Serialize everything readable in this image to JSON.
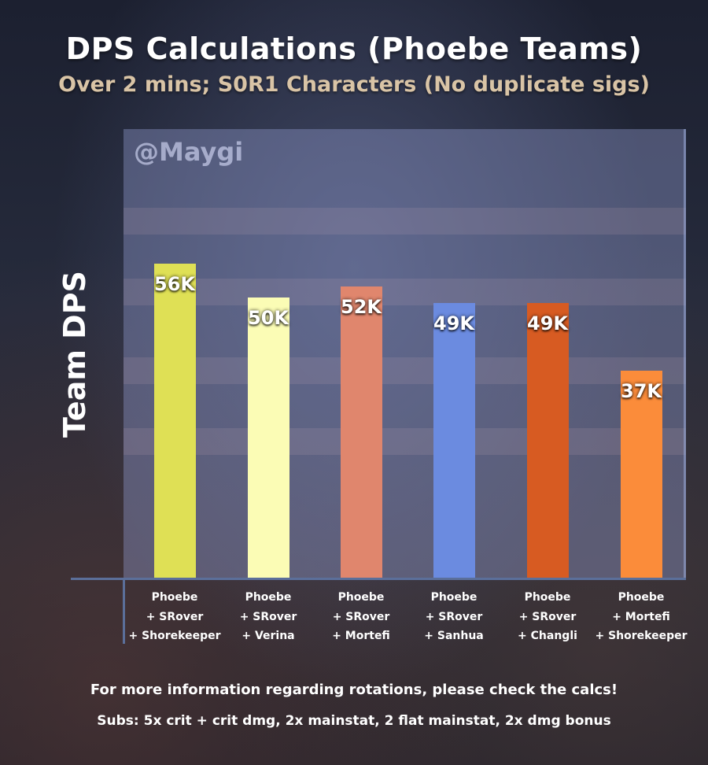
{
  "title": "DPS Calculations (Phoebe Teams)",
  "subtitle": "Over 2 mins; S0R1 Characters (No duplicate sigs)",
  "watermark": "@Maygi",
  "chart_data": {
    "type": "bar",
    "ylabel": "Team DPS",
    "ylim": [
      0,
      80000
    ],
    "categories": [
      [
        "Phoebe",
        "+ SRover",
        "+ Shorekeeper"
      ],
      [
        "Phoebe",
        "+ SRover",
        "+ Verina"
      ],
      [
        "Phoebe",
        "+ SRover",
        "+ Mortefi"
      ],
      [
        "Phoebe",
        "+ SRover",
        "+ Sanhua"
      ],
      [
        "Phoebe",
        "+ SRover",
        "+ Changli"
      ],
      [
        "Phoebe",
        "+ Mortefi",
        "+ Shorekeeper"
      ]
    ],
    "values": [
      56000,
      50000,
      52000,
      49000,
      49000,
      37000
    ],
    "data_labels": [
      "56K",
      "50K",
      "52K",
      "49K",
      "49K",
      "37K"
    ],
    "colors": [
      "#dfe055",
      "#fbfcb5",
      "#e0866d",
      "#6b8be0",
      "#d75b22",
      "#fb8c3a"
    ],
    "grid": false,
    "legend": "none"
  },
  "footer": {
    "line1": "For more information regarding rotations, please check the calcs!",
    "line2": "Subs: 5x crit + crit dmg, 2x mainstat, 2 flat mainstat, 2x dmg bonus"
  }
}
